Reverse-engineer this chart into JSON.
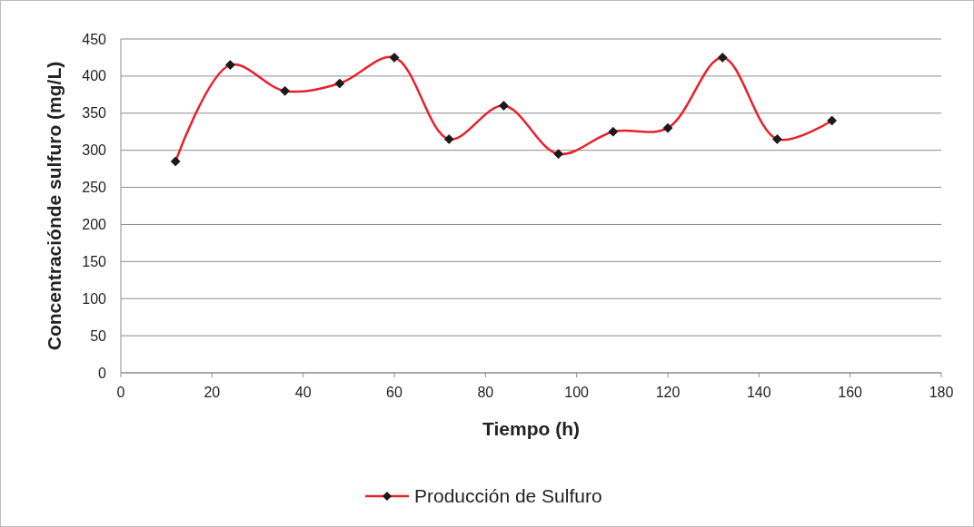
{
  "chart_data": {
    "type": "line",
    "xlabel": "Tiempo (h)",
    "ylabel": "Concentraciónde sulfuro (mg/L)",
    "x": [
      12,
      24,
      36,
      48,
      60,
      72,
      84,
      96,
      108,
      120,
      132,
      144,
      156
    ],
    "series": [
      {
        "name": "Producción de Sulfuro",
        "color": "#e8202a",
        "values": [
          285,
          415,
          380,
          390,
          425,
          315,
          360,
          295,
          325,
          330,
          425,
          315,
          340
        ]
      }
    ],
    "xlim": [
      0,
      180
    ],
    "xticks": [
      0,
      20,
      40,
      60,
      80,
      100,
      120,
      140,
      160,
      180
    ],
    "ylim": [
      0,
      450
    ],
    "yticks": [
      0,
      50,
      100,
      150,
      200,
      250,
      300,
      350,
      400,
      450
    ],
    "grid": "y",
    "legend": "bottom",
    "marker": "diamond",
    "line_style": "solid"
  }
}
